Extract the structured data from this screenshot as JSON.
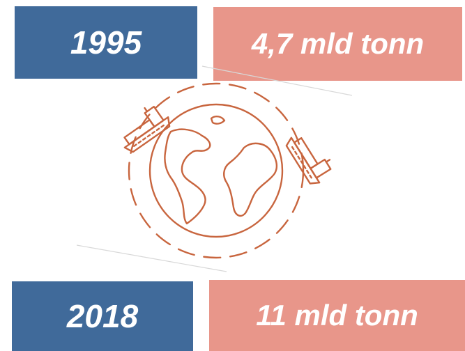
{
  "stats": [
    {
      "year": "1995",
      "amount": "4,7 mld tonn"
    },
    {
      "year": "2018",
      "amount": "11 mld tonn"
    }
  ],
  "colors": {
    "year_box": "#406a9a",
    "amount_box": "#e8968a",
    "illustration_stroke": "#c8653e",
    "text": "#ffffff"
  },
  "illustration": {
    "icons": [
      "globe-icon",
      "cargo-ship-icon",
      "cargo-ship-icon"
    ]
  }
}
